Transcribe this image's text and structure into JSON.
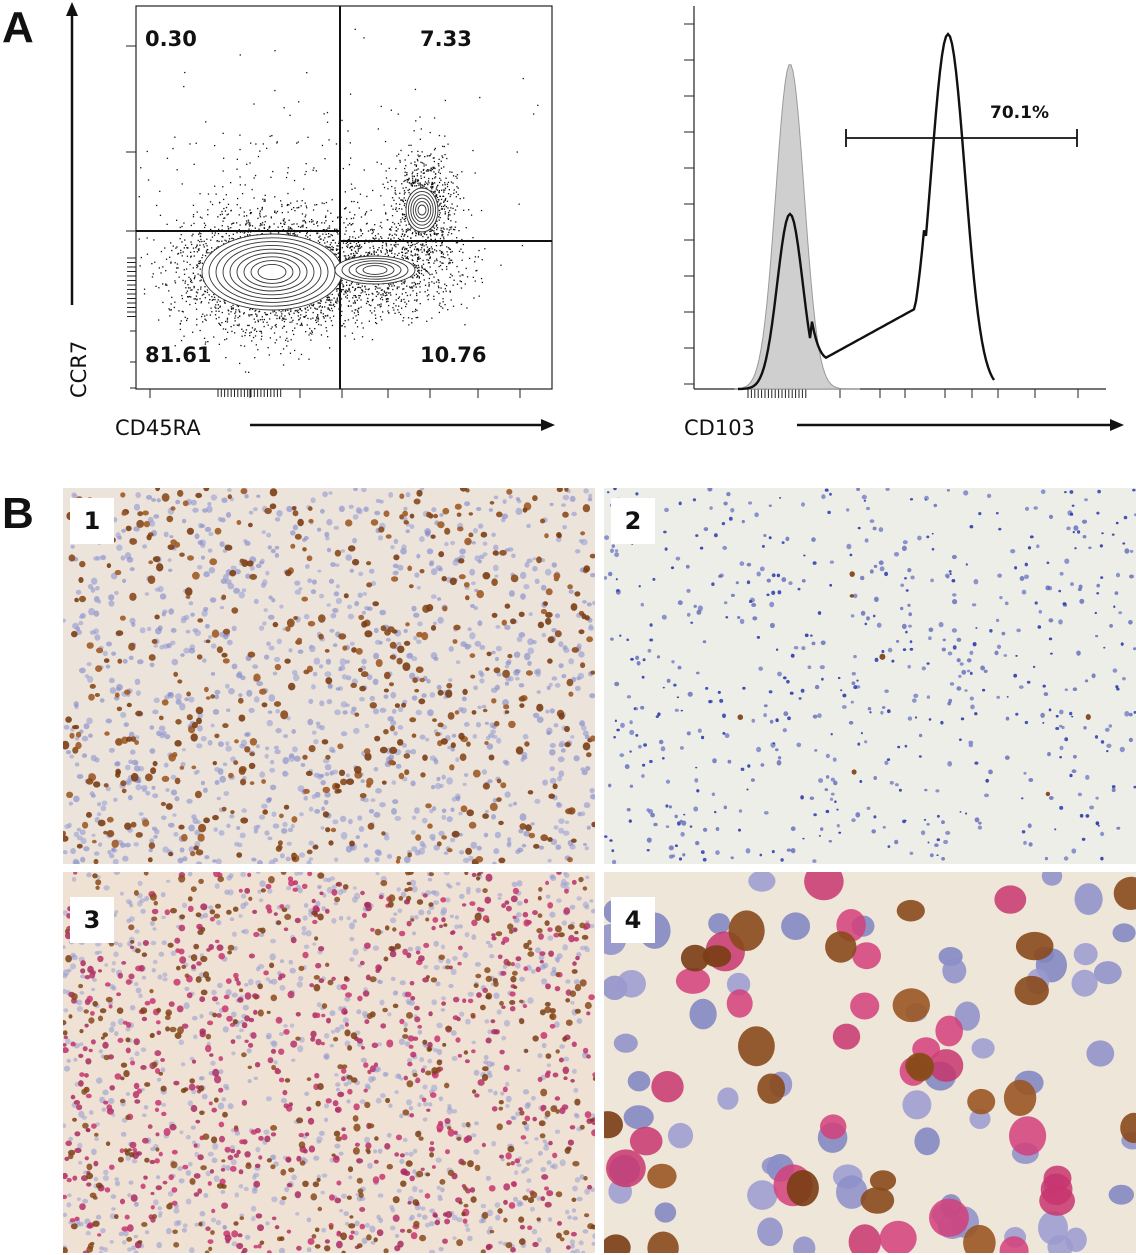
{
  "panels": {
    "a": {
      "letter": "A",
      "dotplot": {
        "y_axis_label": "CCR7",
        "x_axis_label": "CD45RA",
        "quadrants": {
          "upper_left": "0.30",
          "upper_right": "7.33",
          "lower_left": "81.61",
          "lower_right": "10.76"
        }
      },
      "histogram": {
        "x_axis_label": "CD103",
        "gate_percent": "70.1%"
      }
    },
    "b": {
      "letter": "B",
      "images": [
        {
          "label": "1",
          "stain": "brown-dab"
        },
        {
          "label": "2",
          "stain": "blue-sparse"
        },
        {
          "label": "3",
          "stain": "brown-red-double"
        },
        {
          "label": "4",
          "stain": "high-magnification-double"
        }
      ]
    }
  },
  "colors": {
    "hematoxylin": "#7f86c8",
    "dab_brown": "#8a4a1c",
    "fast_red": "#c8356f",
    "background_tissue": "#efe5d8",
    "isotype_fill": "#cfcfcf"
  }
}
